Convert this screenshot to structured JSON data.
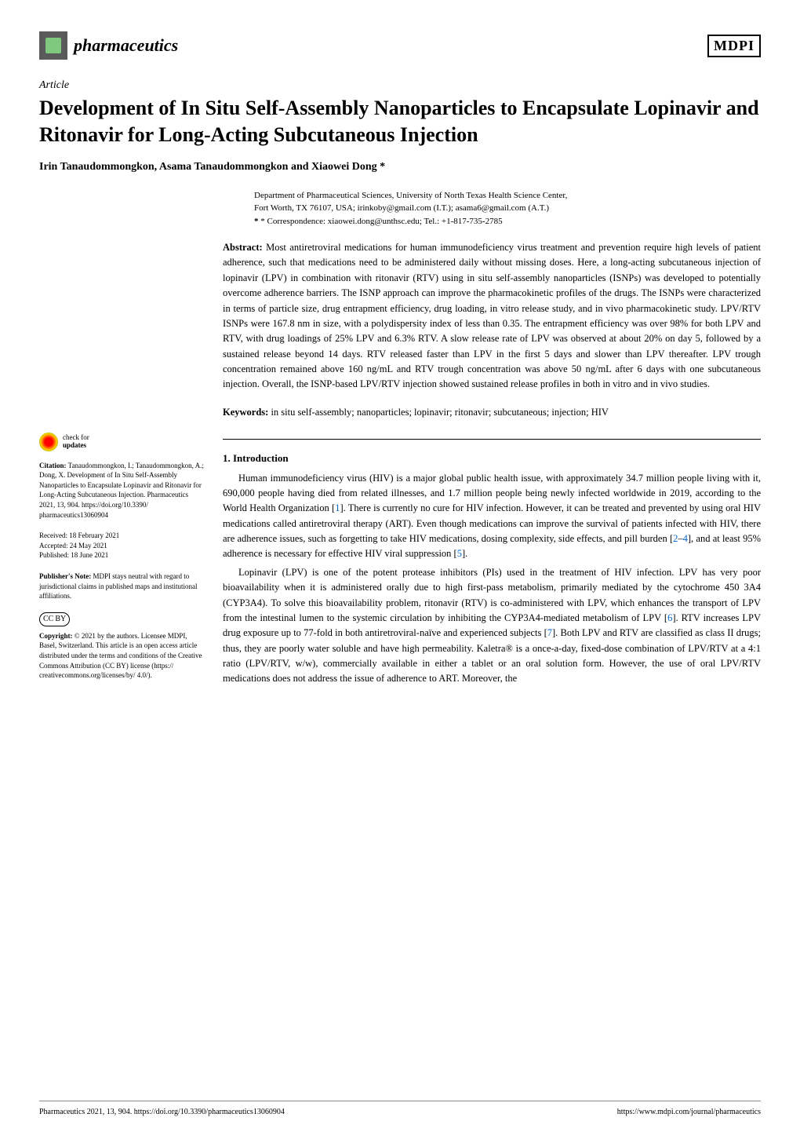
{
  "journal": {
    "name": "pharmaceutics",
    "publisher": "MDPI"
  },
  "article": {
    "type": "Article",
    "title": "Development of In Situ Self-Assembly Nanoparticles to Encapsulate Lopinavir and Ritonavir for Long-Acting Subcutaneous Injection",
    "authors": "Irin Tanaudommongkon, Asama Tanaudommongkon and Xiaowei Dong *"
  },
  "affiliation": {
    "dept": "Department of Pharmaceutical Sciences, University of North Texas Health Science Center,",
    "address": "Fort Worth, TX 76107, USA; irinkoby@gmail.com (I.T.); asama6@gmail.com (A.T.)",
    "correspondence": "* Correspondence: xiaowei.dong@unthsc.edu; Tel.: +1-817-735-2785"
  },
  "abstract": {
    "label": "Abstract:",
    "text": "Most antiretroviral medications for human immunodeficiency virus treatment and prevention require high levels of patient adherence, such that medications need to be administered daily without missing doses. Here, a long-acting subcutaneous injection of lopinavir (LPV) in combination with ritonavir (RTV) using in situ self-assembly nanoparticles (ISNPs) was developed to potentially overcome adherence barriers. The ISNP approach can improve the pharmacokinetic profiles of the drugs. The ISNPs were characterized in terms of particle size, drug entrapment efficiency, drug loading, in vitro release study, and in vivo pharmacokinetic study. LPV/RTV ISNPs were 167.8 nm in size, with a polydispersity index of less than 0.35. The entrapment efficiency was over 98% for both LPV and RTV, with drug loadings of 25% LPV and 6.3% RTV. A slow release rate of LPV was observed at about 20% on day 5, followed by a sustained release beyond 14 days. RTV released faster than LPV in the first 5 days and slower than LPV thereafter. LPV trough concentration remained above 160 ng/mL and RTV trough concentration was above 50 ng/mL after 6 days with one subcutaneous injection. Overall, the ISNP-based LPV/RTV injection showed sustained release profiles in both in vitro and in vivo studies."
  },
  "keywords": {
    "label": "Keywords:",
    "text": "in situ self-assembly; nanoparticles; lopinavir; ritonavir; subcutaneous; injection; HIV"
  },
  "section1": {
    "title": "1. Introduction",
    "p1_a": "Human immunodeficiency virus (HIV) is a major global public health issue, with approximately 34.7 million people living with it, 690,000 people having died from related illnesses, and 1.7 million people being newly infected worldwide in 2019, according to the World Health Organization [",
    "p1_ref1": "1",
    "p1_b": "]. There is currently no cure for HIV infection. However, it can be treated and prevented by using oral HIV medications called antiretroviral therapy (ART). Even though medications can improve the survival of patients infected with HIV, there are adherence issues, such as forgetting to take HIV medications, dosing complexity, side effects, and pill burden [",
    "p1_ref2": "2",
    "p1_dash": "–",
    "p1_ref4": "4",
    "p1_c": "], and at least 95% adherence is necessary for effective HIV viral suppression [",
    "p1_ref5": "5",
    "p1_d": "].",
    "p2_a": "Lopinavir (LPV) is one of the potent protease inhibitors (PIs) used in the treatment of HIV infection. LPV has very poor bioavailability when it is administered orally due to high first-pass metabolism, primarily mediated by the cytochrome 450 3A4 (CYP3A4). To solve this bioavailability problem, ritonavir (RTV) is co-administered with LPV, which enhances the transport of LPV from the intestinal lumen to the systemic circulation by inhibiting the CYP3A4-mediated metabolism of LPV [",
    "p2_ref6": "6",
    "p2_b": "]. RTV increases LPV drug exposure up to 77-fold in both antiretroviral-naïve and experienced subjects [",
    "p2_ref7": "7",
    "p2_c": "]. Both LPV and RTV are classified as class II drugs; thus, they are poorly water soluble and have high permeability. Kaletra® is a once-a-day, fixed-dose combination of LPV/RTV at a 4:1 ratio (LPV/RTV, w/w), commercially available in either a tablet or an oral solution form. However, the use of oral LPV/RTV medications does not address the issue of adherence to ART. Moreover, the"
  },
  "sidebar": {
    "check_updates": "check for\nupdates",
    "citation_label": "Citation:",
    "citation": "Tanaudommongkon, I.; Tanaudommongkon, A.; Dong, X. Development of In Situ Self-Assembly Nanoparticles to Encapsulate Lopinavir and Ritonavir for Long-Acting Subcutaneous Injection. Pharmaceutics 2021, 13, 904. https://doi.org/10.3390/ pharmaceutics13060904",
    "received": "Received: 18 February 2021",
    "accepted": "Accepted: 24 May 2021",
    "published": "Published: 18 June 2021",
    "publishers_note_label": "Publisher's Note:",
    "publishers_note": "MDPI stays neutral with regard to jurisdictional claims in published maps and institutional affiliations.",
    "cc_symbol": "CC",
    "by_symbol": "BY",
    "copyright_label": "Copyright:",
    "copyright": "© 2021 by the authors. Licensee MDPI, Basel, Switzerland. This article is an open access article distributed under the terms and conditions of the Creative Commons Attribution (CC BY) license (https:// creativecommons.org/licenses/by/ 4.0/)."
  },
  "footer": {
    "left": "Pharmaceutics 2021, 13, 904. https://doi.org/10.3390/pharmaceutics13060904",
    "right": "https://www.mdpi.com/journal/pharmaceutics"
  },
  "colors": {
    "link": "#0066cc",
    "text": "#000000",
    "background": "#ffffff"
  }
}
